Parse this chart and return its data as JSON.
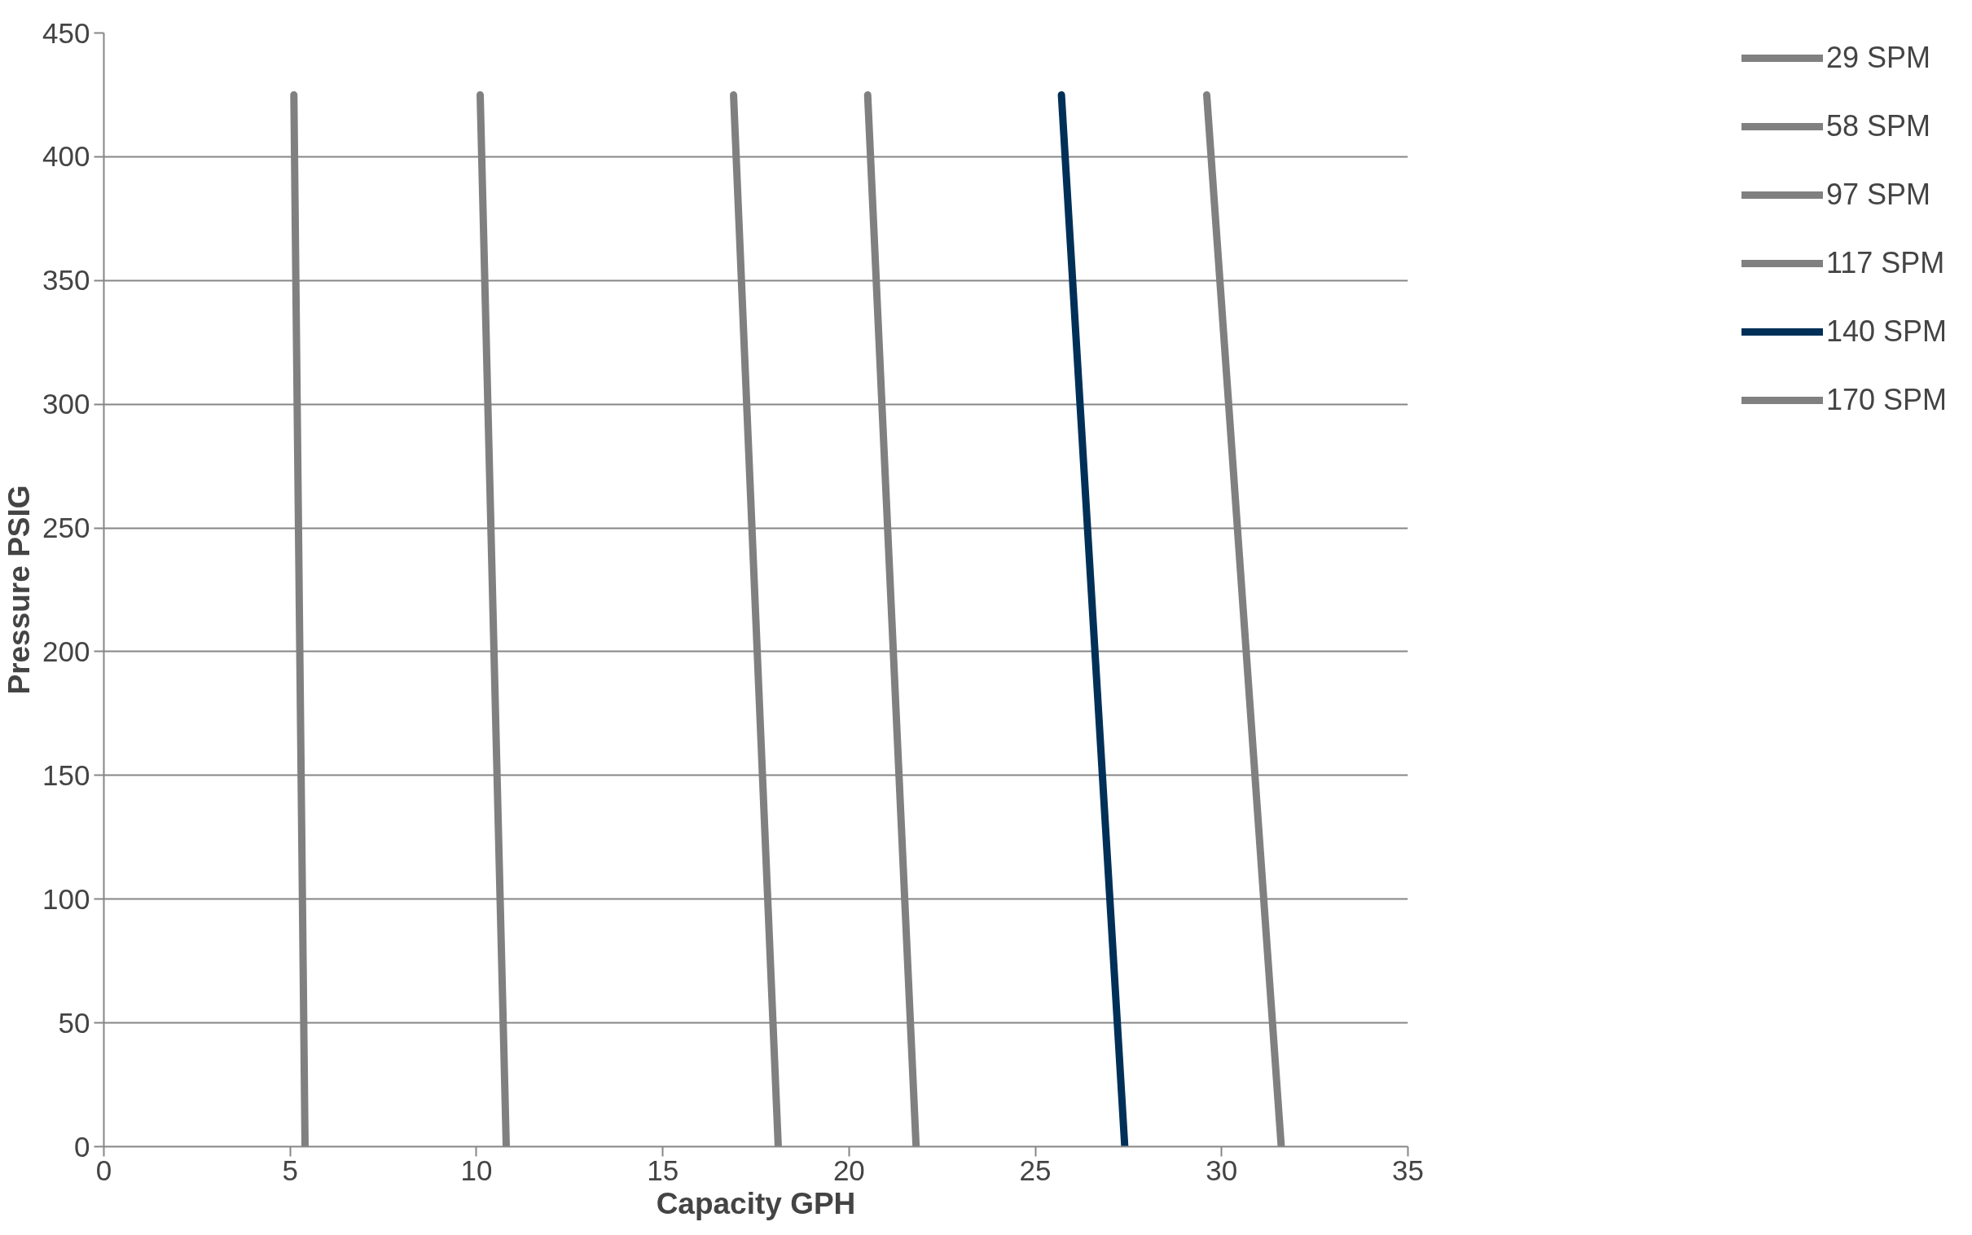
{
  "chart_data": {
    "type": "line",
    "xlabel": "Capacity GPH",
    "ylabel": "Pressure PSIG",
    "xlim": [
      0,
      35
    ],
    "xticks": [
      0,
      5,
      10,
      15,
      20,
      25,
      30,
      35
    ],
    "ylim": [
      0,
      450
    ],
    "yticks": [
      0,
      50,
      100,
      150,
      200,
      250,
      300,
      350,
      400,
      450
    ],
    "grid": "y",
    "legend": "right",
    "marker": "none",
    "line_style": "solid",
    "series": [
      {
        "name": "29 SPM",
        "color": "#808080",
        "x": [
          5.1,
          5.4
        ],
        "values": [
          425,
          0
        ]
      },
      {
        "name": "58 SPM",
        "color": "#808080",
        "x": [
          10.1,
          10.8
        ],
        "values": [
          425,
          0
        ]
      },
      {
        "name": "97 SPM",
        "color": "#808080",
        "x": [
          16.9,
          18.1
        ],
        "values": [
          425,
          0
        ]
      },
      {
        "name": "117 SPM",
        "color": "#808080",
        "x": [
          20.5,
          21.8
        ],
        "values": [
          425,
          0
        ]
      },
      {
        "name": "140 SPM",
        "color": "#003057",
        "x": [
          25.7,
          27.4
        ],
        "values": [
          425,
          0
        ]
      },
      {
        "name": "170 SPM",
        "color": "#808080",
        "x": [
          29.6,
          31.6
        ],
        "values": [
          425,
          0
        ]
      }
    ]
  }
}
